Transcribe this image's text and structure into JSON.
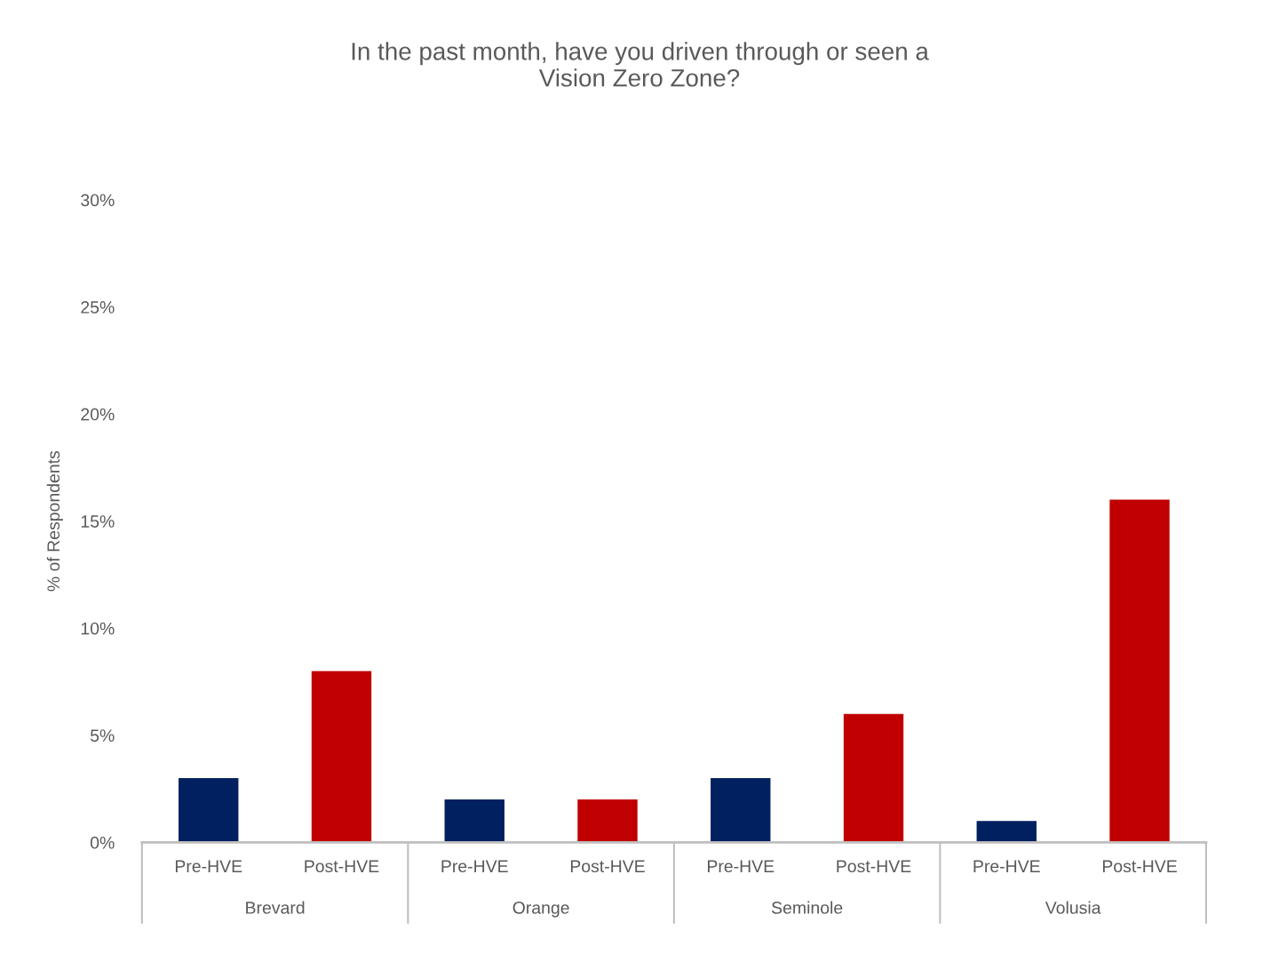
{
  "chart_data": {
    "type": "bar",
    "title": "In the past month, have you driven through or seen a\nVision Zero Zone?",
    "ylabel": "% of Respondents",
    "categories": [
      "Pre-HVE",
      "Post-HVE",
      "Pre-HVE",
      "Post-HVE",
      "Pre-HVE",
      "Post-HVE",
      "Pre-HVE",
      "Post-HVE"
    ],
    "values": [
      3,
      8,
      2,
      2,
      3,
      6,
      1,
      16
    ],
    "colors": [
      "#002060",
      "#c00000",
      "#002060",
      "#c00000",
      "#002060",
      "#c00000",
      "#002060",
      "#c00000"
    ],
    "annotations": [
      "Brevard",
      "Orange",
      "Seminole",
      "Volusia"
    ],
    "ylim": [
      0,
      30
    ],
    "yticks": [
      {
        "value": 0,
        "label": "0%"
      },
      {
        "value": 5,
        "label": "5%"
      },
      {
        "value": 10,
        "label": "10%"
      },
      {
        "value": 15,
        "label": "15%"
      },
      {
        "value": 20,
        "label": "20%"
      },
      {
        "value": 25,
        "label": "25%"
      },
      {
        "value": 30,
        "label": "30%"
      }
    ],
    "grid": false,
    "legend": false
  }
}
